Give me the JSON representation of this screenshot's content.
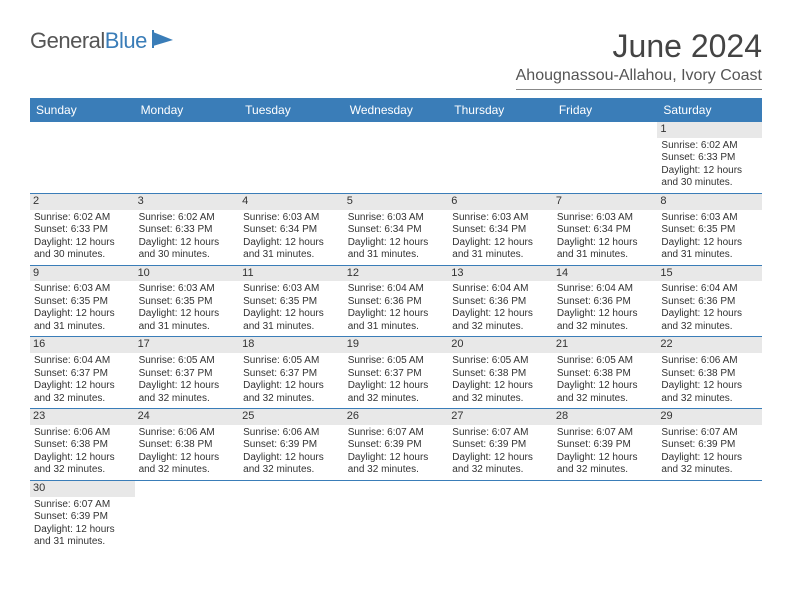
{
  "brand": {
    "part1": "General",
    "part2": "Blue"
  },
  "title": "June 2024",
  "location": "Ahougnassou-Allahou, Ivory Coast",
  "colors": {
    "header_bg": "#3a7db8",
    "header_text": "#ffffff",
    "daynum_bg": "#e8e8e8",
    "row_border": "#3a7db8",
    "text": "#333333"
  },
  "day_names": [
    "Sunday",
    "Monday",
    "Tuesday",
    "Wednesday",
    "Thursday",
    "Friday",
    "Saturday"
  ],
  "weeks": [
    [
      null,
      null,
      null,
      null,
      null,
      null,
      {
        "n": "1",
        "sunrise": "Sunrise: 6:02 AM",
        "sunset": "Sunset: 6:33 PM",
        "d1": "Daylight: 12 hours",
        "d2": "and 30 minutes."
      }
    ],
    [
      {
        "n": "2",
        "sunrise": "Sunrise: 6:02 AM",
        "sunset": "Sunset: 6:33 PM",
        "d1": "Daylight: 12 hours",
        "d2": "and 30 minutes."
      },
      {
        "n": "3",
        "sunrise": "Sunrise: 6:02 AM",
        "sunset": "Sunset: 6:33 PM",
        "d1": "Daylight: 12 hours",
        "d2": "and 30 minutes."
      },
      {
        "n": "4",
        "sunrise": "Sunrise: 6:03 AM",
        "sunset": "Sunset: 6:34 PM",
        "d1": "Daylight: 12 hours",
        "d2": "and 31 minutes."
      },
      {
        "n": "5",
        "sunrise": "Sunrise: 6:03 AM",
        "sunset": "Sunset: 6:34 PM",
        "d1": "Daylight: 12 hours",
        "d2": "and 31 minutes."
      },
      {
        "n": "6",
        "sunrise": "Sunrise: 6:03 AM",
        "sunset": "Sunset: 6:34 PM",
        "d1": "Daylight: 12 hours",
        "d2": "and 31 minutes."
      },
      {
        "n": "7",
        "sunrise": "Sunrise: 6:03 AM",
        "sunset": "Sunset: 6:34 PM",
        "d1": "Daylight: 12 hours",
        "d2": "and 31 minutes."
      },
      {
        "n": "8",
        "sunrise": "Sunrise: 6:03 AM",
        "sunset": "Sunset: 6:35 PM",
        "d1": "Daylight: 12 hours",
        "d2": "and 31 minutes."
      }
    ],
    [
      {
        "n": "9",
        "sunrise": "Sunrise: 6:03 AM",
        "sunset": "Sunset: 6:35 PM",
        "d1": "Daylight: 12 hours",
        "d2": "and 31 minutes."
      },
      {
        "n": "10",
        "sunrise": "Sunrise: 6:03 AM",
        "sunset": "Sunset: 6:35 PM",
        "d1": "Daylight: 12 hours",
        "d2": "and 31 minutes."
      },
      {
        "n": "11",
        "sunrise": "Sunrise: 6:03 AM",
        "sunset": "Sunset: 6:35 PM",
        "d1": "Daylight: 12 hours",
        "d2": "and 31 minutes."
      },
      {
        "n": "12",
        "sunrise": "Sunrise: 6:04 AM",
        "sunset": "Sunset: 6:36 PM",
        "d1": "Daylight: 12 hours",
        "d2": "and 31 minutes."
      },
      {
        "n": "13",
        "sunrise": "Sunrise: 6:04 AM",
        "sunset": "Sunset: 6:36 PM",
        "d1": "Daylight: 12 hours",
        "d2": "and 32 minutes."
      },
      {
        "n": "14",
        "sunrise": "Sunrise: 6:04 AM",
        "sunset": "Sunset: 6:36 PM",
        "d1": "Daylight: 12 hours",
        "d2": "and 32 minutes."
      },
      {
        "n": "15",
        "sunrise": "Sunrise: 6:04 AM",
        "sunset": "Sunset: 6:36 PM",
        "d1": "Daylight: 12 hours",
        "d2": "and 32 minutes."
      }
    ],
    [
      {
        "n": "16",
        "sunrise": "Sunrise: 6:04 AM",
        "sunset": "Sunset: 6:37 PM",
        "d1": "Daylight: 12 hours",
        "d2": "and 32 minutes."
      },
      {
        "n": "17",
        "sunrise": "Sunrise: 6:05 AM",
        "sunset": "Sunset: 6:37 PM",
        "d1": "Daylight: 12 hours",
        "d2": "and 32 minutes."
      },
      {
        "n": "18",
        "sunrise": "Sunrise: 6:05 AM",
        "sunset": "Sunset: 6:37 PM",
        "d1": "Daylight: 12 hours",
        "d2": "and 32 minutes."
      },
      {
        "n": "19",
        "sunrise": "Sunrise: 6:05 AM",
        "sunset": "Sunset: 6:37 PM",
        "d1": "Daylight: 12 hours",
        "d2": "and 32 minutes."
      },
      {
        "n": "20",
        "sunrise": "Sunrise: 6:05 AM",
        "sunset": "Sunset: 6:38 PM",
        "d1": "Daylight: 12 hours",
        "d2": "and 32 minutes."
      },
      {
        "n": "21",
        "sunrise": "Sunrise: 6:05 AM",
        "sunset": "Sunset: 6:38 PM",
        "d1": "Daylight: 12 hours",
        "d2": "and 32 minutes."
      },
      {
        "n": "22",
        "sunrise": "Sunrise: 6:06 AM",
        "sunset": "Sunset: 6:38 PM",
        "d1": "Daylight: 12 hours",
        "d2": "and 32 minutes."
      }
    ],
    [
      {
        "n": "23",
        "sunrise": "Sunrise: 6:06 AM",
        "sunset": "Sunset: 6:38 PM",
        "d1": "Daylight: 12 hours",
        "d2": "and 32 minutes."
      },
      {
        "n": "24",
        "sunrise": "Sunrise: 6:06 AM",
        "sunset": "Sunset: 6:38 PM",
        "d1": "Daylight: 12 hours",
        "d2": "and 32 minutes."
      },
      {
        "n": "25",
        "sunrise": "Sunrise: 6:06 AM",
        "sunset": "Sunset: 6:39 PM",
        "d1": "Daylight: 12 hours",
        "d2": "and 32 minutes."
      },
      {
        "n": "26",
        "sunrise": "Sunrise: 6:07 AM",
        "sunset": "Sunset: 6:39 PM",
        "d1": "Daylight: 12 hours",
        "d2": "and 32 minutes."
      },
      {
        "n": "27",
        "sunrise": "Sunrise: 6:07 AM",
        "sunset": "Sunset: 6:39 PM",
        "d1": "Daylight: 12 hours",
        "d2": "and 32 minutes."
      },
      {
        "n": "28",
        "sunrise": "Sunrise: 6:07 AM",
        "sunset": "Sunset: 6:39 PM",
        "d1": "Daylight: 12 hours",
        "d2": "and 32 minutes."
      },
      {
        "n": "29",
        "sunrise": "Sunrise: 6:07 AM",
        "sunset": "Sunset: 6:39 PM",
        "d1": "Daylight: 12 hours",
        "d2": "and 32 minutes."
      }
    ],
    [
      {
        "n": "30",
        "sunrise": "Sunrise: 6:07 AM",
        "sunset": "Sunset: 6:39 PM",
        "d1": "Daylight: 12 hours",
        "d2": "and 31 minutes."
      },
      null,
      null,
      null,
      null,
      null,
      null
    ]
  ]
}
